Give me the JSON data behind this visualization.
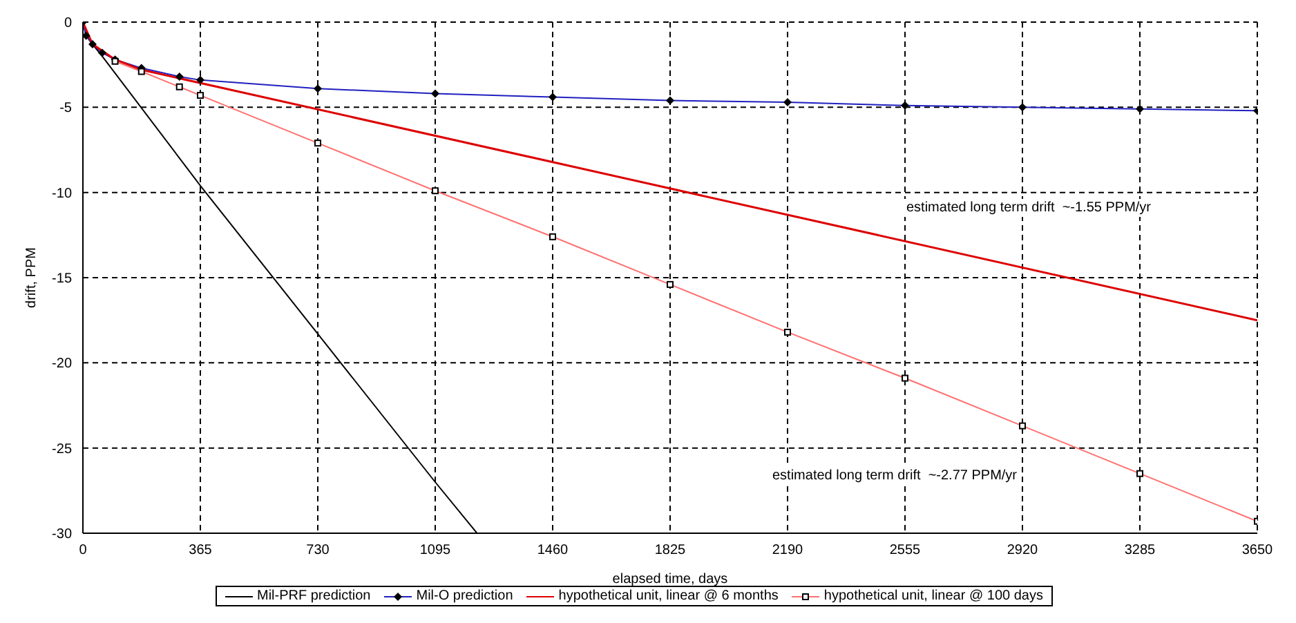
{
  "chart_data": {
    "type": "line",
    "xlabel": "elapsed time, days",
    "ylabel": "drift, PPM",
    "xlim": [
      0,
      3650
    ],
    "xticks": [
      0,
      365,
      730,
      1095,
      1460,
      1825,
      2190,
      2555,
      2920,
      3285,
      3650
    ],
    "ylim": [
      -30,
      0
    ],
    "yticks": [
      -30,
      -25,
      -20,
      -15,
      -10,
      -5,
      0
    ],
    "grid": true,
    "legend": "bottom",
    "line_style": "solid",
    "series": [
      {
        "name": "Mil-PRF prediction",
        "color": "#000000",
        "marker": "none",
        "x": [
          0,
          10,
          30,
          60,
          365,
          730,
          1095,
          1225
        ],
        "values": [
          0,
          -0.8,
          -1.3,
          -2.0,
          -9.6,
          -18.3,
          -27,
          -30
        ]
      },
      {
        "name": "Mil-O prediction",
        "color": "#2020c0",
        "marker": "diamond",
        "x": [
          0,
          10,
          30,
          60,
          100,
          182,
          300,
          365,
          730,
          1095,
          1460,
          1825,
          2190,
          2555,
          2920,
          3285,
          3650
        ],
        "values": [
          0,
          -0.8,
          -1.3,
          -1.8,
          -2.2,
          -2.7,
          -3.2,
          -3.4,
          -3.9,
          -4.2,
          -4.4,
          -4.6,
          -4.7,
          -4.9,
          -5.0,
          -5.1,
          -5.2
        ]
      },
      {
        "name": "hypothetical unit, linear @ 6 months",
        "color": "#dd0000",
        "marker": "none",
        "x": [
          0,
          30,
          100,
          182,
          3650
        ],
        "values": [
          0,
          -1.3,
          -2.2,
          -2.8,
          -17.5
        ]
      },
      {
        "name": "hypothetical unit, linear @ 100 days",
        "color": "#ff7070",
        "marker": "square",
        "x": [
          100,
          182,
          300,
          365,
          730,
          1095,
          1460,
          1825,
          2190,
          2555,
          2920,
          3285,
          3650
        ],
        "values": [
          -2.3,
          -2.9,
          -3.8,
          -4.3,
          -7.1,
          -9.9,
          -12.6,
          -15.4,
          -18.2,
          -20.9,
          -23.7,
          -26.5,
          -29.3
        ]
      }
    ],
    "annotations": [
      "estimated long term drift  ~-1.55 PPM/yr",
      "estimated long term drift  ~-2.77 PPM/yr"
    ]
  }
}
